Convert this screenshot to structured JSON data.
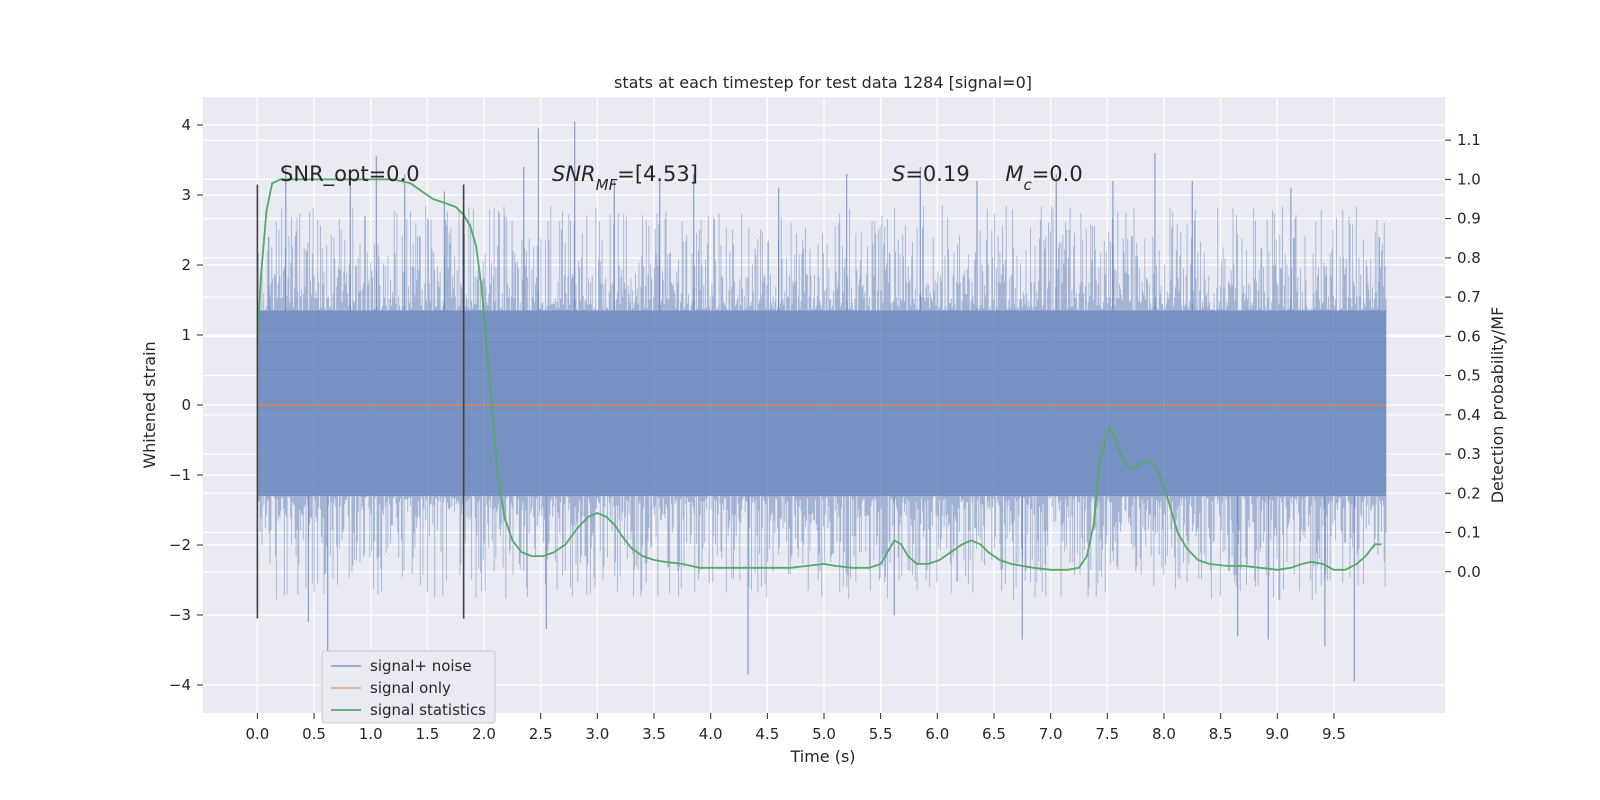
{
  "chart_data": {
    "type": "line",
    "title": "stats at each timestep for test data 1284 [signal=0]",
    "xlabel": "Time (s)",
    "ylabel": "Whitened strain",
    "ylabel_right": "Detection probability/MF",
    "xlim": [
      -0.48,
      10.48
    ],
    "ylim": [
      -4.4,
      4.4
    ],
    "ylim_right": [
      -0.36,
      1.21
    ],
    "x_ticks": [
      "0.0",
      "0.5",
      "1.0",
      "1.5",
      "2.0",
      "2.5",
      "3.0",
      "3.5",
      "4.0",
      "4.5",
      "5.0",
      "5.5",
      "6.0",
      "6.5",
      "7.0",
      "7.5",
      "8.0",
      "8.5",
      "9.0",
      "9.5"
    ],
    "y_ticks": [
      "4",
      "3",
      "2",
      "1",
      "0",
      "−1",
      "−2",
      "−3",
      "−4"
    ],
    "y_ticks_right": [
      "1.1",
      "1.0",
      "0.9",
      "0.8",
      "0.7",
      "0.6",
      "0.5",
      "0.4",
      "0.3",
      "0.2",
      "0.1",
      "0.0"
    ],
    "grid": true,
    "legend_position": "lower-left",
    "annotations": [
      {
        "name": "snr-opt",
        "text": "SNR_opt=0.0",
        "x": 0.2,
        "y": 3.2
      },
      {
        "name": "snr-mf",
        "parts": [
          {
            "t": "SNR",
            "i": true
          },
          {
            "t": "MF",
            "i": true,
            "sub": true
          },
          {
            "t": "=[4.53]"
          }
        ],
        "x": 2.6,
        "y": 3.2
      },
      {
        "name": "s-stat",
        "parts": [
          {
            "t": "S",
            "i": true
          },
          {
            "t": "=0.19"
          }
        ],
        "x": 5.6,
        "y": 3.2
      },
      {
        "name": "mc",
        "parts": [
          {
            "t": "M",
            "i": true
          },
          {
            "t": "c",
            "i": true,
            "sub": true
          },
          {
            "t": "=0.0"
          }
        ],
        "x": 6.6,
        "y": 3.2
      }
    ],
    "vertical_lines": [
      {
        "x": 0.0,
        "y_range": [
          -3.05,
          3.15
        ]
      },
      {
        "x": 1.82,
        "y_range": [
          -3.05,
          3.15
        ]
      }
    ],
    "series": [
      {
        "name": "signal+ noise",
        "color": "#4c72b0",
        "kind": "noise-band",
        "x_range": [
          0.0,
          9.96
        ],
        "dense_band": [
          -1.3,
          1.35
        ],
        "spikes": [
          {
            "x": 0.1,
            "y": 2.4
          },
          {
            "x": 0.25,
            "y": 3.4
          },
          {
            "x": 0.45,
            "y": -3.1
          },
          {
            "x": 0.62,
            "y": -3.6
          },
          {
            "x": 0.82,
            "y": 3.3
          },
          {
            "x": 1.05,
            "y": 3.55
          },
          {
            "x": 1.3,
            "y": 3.3
          },
          {
            "x": 1.65,
            "y": 3.05
          },
          {
            "x": 2.35,
            "y": 3.4
          },
          {
            "x": 2.48,
            "y": 3.95
          },
          {
            "x": 2.55,
            "y": -3.2
          },
          {
            "x": 2.8,
            "y": 4.05
          },
          {
            "x": 3.15,
            "y": 3.2
          },
          {
            "x": 3.55,
            "y": 3.2
          },
          {
            "x": 3.85,
            "y": 3.3
          },
          {
            "x": 4.33,
            "y": -3.85
          },
          {
            "x": 4.6,
            "y": 3.1
          },
          {
            "x": 5.2,
            "y": 3.3
          },
          {
            "x": 5.62,
            "y": -3.0
          },
          {
            "x": 5.85,
            "y": 3.4
          },
          {
            "x": 6.35,
            "y": 3.2
          },
          {
            "x": 6.75,
            "y": -3.35
          },
          {
            "x": 7.05,
            "y": 3.3
          },
          {
            "x": 7.55,
            "y": 3.2
          },
          {
            "x": 7.92,
            "y": 3.6
          },
          {
            "x": 8.25,
            "y": 3.2
          },
          {
            "x": 8.65,
            "y": -3.3
          },
          {
            "x": 8.92,
            "y": -3.35
          },
          {
            "x": 9.12,
            "y": 3.1
          },
          {
            "x": 9.42,
            "y": -3.45
          },
          {
            "x": 9.68,
            "y": -3.95
          },
          {
            "x": 9.9,
            "y": 2.4
          }
        ]
      },
      {
        "name": "signal only",
        "color": "#dd8452",
        "x": [
          0.0,
          9.96
        ],
        "y": [
          0.0,
          0.0
        ]
      },
      {
        "name": "signal statistics",
        "color": "#55a868",
        "axis": "right",
        "x": [
          0.0,
          0.03,
          0.08,
          0.13,
          0.2,
          0.3,
          0.45,
          0.7,
          1.0,
          1.2,
          1.35,
          1.45,
          1.55,
          1.65,
          1.75,
          1.82,
          1.88,
          1.93,
          1.98,
          2.03,
          2.07,
          2.12,
          2.18,
          2.25,
          2.33,
          2.42,
          2.52,
          2.62,
          2.72,
          2.82,
          2.92,
          3.0,
          3.08,
          3.15,
          3.22,
          3.3,
          3.4,
          3.5,
          3.6,
          3.75,
          3.9,
          4.1,
          4.3,
          4.5,
          4.7,
          4.85,
          5.0,
          5.1,
          5.25,
          5.4,
          5.5,
          5.56,
          5.62,
          5.68,
          5.74,
          5.82,
          5.92,
          6.02,
          6.12,
          6.22,
          6.3,
          6.38,
          6.45,
          6.55,
          6.65,
          6.75,
          6.85,
          7.0,
          7.15,
          7.25,
          7.32,
          7.38,
          7.43,
          7.48,
          7.52,
          7.57,
          7.62,
          7.67,
          7.72,
          7.77,
          7.82,
          7.87,
          7.92,
          7.97,
          8.02,
          8.07,
          8.12,
          8.2,
          8.3,
          8.4,
          8.55,
          8.7,
          8.85,
          9.0,
          9.12,
          9.22,
          9.3,
          9.4,
          9.5,
          9.6,
          9.7,
          9.78,
          9.86,
          9.92
        ],
        "y": [
          0.58,
          0.75,
          0.92,
          0.99,
          1.0,
          1.0,
          1.0,
          1.0,
          1.0,
          1.0,
          0.99,
          0.97,
          0.95,
          0.94,
          0.93,
          0.91,
          0.88,
          0.83,
          0.72,
          0.55,
          0.42,
          0.25,
          0.14,
          0.08,
          0.05,
          0.04,
          0.04,
          0.05,
          0.07,
          0.11,
          0.14,
          0.15,
          0.14,
          0.12,
          0.09,
          0.06,
          0.04,
          0.03,
          0.025,
          0.02,
          0.01,
          0.01,
          0.01,
          0.01,
          0.01,
          0.015,
          0.02,
          0.015,
          0.01,
          0.01,
          0.02,
          0.05,
          0.08,
          0.07,
          0.04,
          0.02,
          0.02,
          0.03,
          0.05,
          0.07,
          0.08,
          0.07,
          0.05,
          0.03,
          0.02,
          0.015,
          0.01,
          0.005,
          0.005,
          0.01,
          0.04,
          0.12,
          0.28,
          0.33,
          0.37,
          0.34,
          0.3,
          0.27,
          0.26,
          0.27,
          0.28,
          0.28,
          0.27,
          0.24,
          0.2,
          0.15,
          0.1,
          0.06,
          0.03,
          0.02,
          0.015,
          0.015,
          0.01,
          0.005,
          0.01,
          0.02,
          0.025,
          0.02,
          0.005,
          0.005,
          0.02,
          0.04,
          0.07,
          0.07
        ]
      }
    ]
  }
}
